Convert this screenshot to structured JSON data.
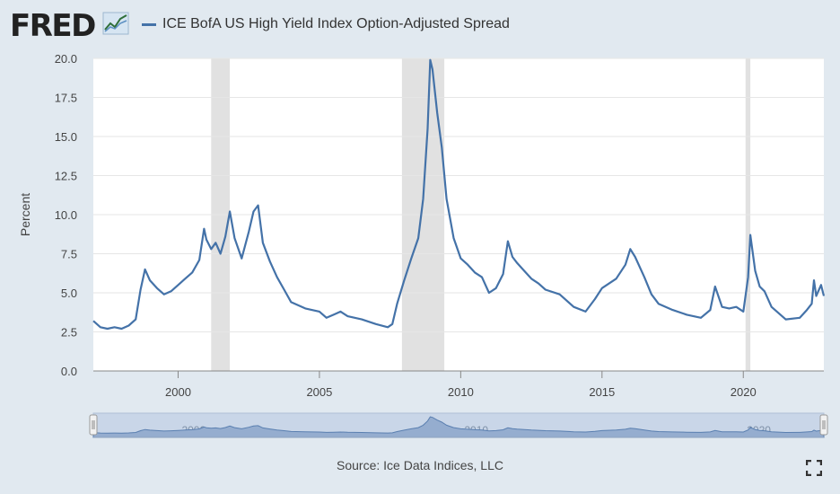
{
  "header": {
    "logo_text": "FRED",
    "legend_label": "ICE BofA US High Yield Index Option-Adjusted Spread"
  },
  "footer": {
    "source": "Source: Ice Data Indices, LLC"
  },
  "icons": {
    "logo_graph": "fred-graph-icon",
    "fullscreen": "fullscreen-icon"
  },
  "colors": {
    "line": "#4472a8",
    "recession_band": "#e1e1e1",
    "page_background": "#e1e9f0",
    "plot_background": "#ffffff"
  },
  "chart_data": {
    "type": "line",
    "title": "",
    "xlabel": "",
    "ylabel": "Percent",
    "xlim": [
      1997.0,
      2022.85
    ],
    "ylim": [
      0,
      20
    ],
    "yticks": [
      "0.0",
      "2.5",
      "5.0",
      "7.5",
      "10.0",
      "12.5",
      "15.0",
      "17.5",
      "20.0"
    ],
    "xticks": [
      "2000",
      "2005",
      "2010",
      "2015",
      "2020"
    ],
    "grid": true,
    "legend_position": "top-left",
    "recessions": [
      [
        2001.17,
        2001.83
      ],
      [
        2007.92,
        2009.42
      ],
      [
        2020.08,
        2020.25
      ]
    ],
    "navigator_labels": [
      "2000",
      "2010",
      "2020"
    ],
    "series": [
      {
        "name": "ICE BofA US High Yield Index Option-Adjusted Spread",
        "x": [
          1997.0,
          1997.25,
          1997.5,
          1997.75,
          1998.0,
          1998.25,
          1998.5,
          1998.67,
          1998.83,
          1999.0,
          1999.25,
          1999.5,
          1999.75,
          2000.0,
          2000.25,
          2000.5,
          2000.75,
          2000.92,
          2001.0,
          2001.17,
          2001.33,
          2001.5,
          2001.67,
          2001.83,
          2002.0,
          2002.25,
          2002.5,
          2002.67,
          2002.83,
          2003.0,
          2003.25,
          2003.5,
          2003.75,
          2004.0,
          2004.5,
          2005.0,
          2005.25,
          2005.5,
          2005.75,
          2006.0,
          2006.5,
          2007.0,
          2007.42,
          2007.58,
          2007.75,
          2008.0,
          2008.25,
          2008.5,
          2008.67,
          2008.83,
          2008.92,
          2009.0,
          2009.17,
          2009.33,
          2009.5,
          2009.75,
          2010.0,
          2010.25,
          2010.5,
          2010.75,
          2011.0,
          2011.25,
          2011.5,
          2011.67,
          2011.83,
          2012.0,
          2012.25,
          2012.5,
          2012.75,
          2013.0,
          2013.5,
          2014.0,
          2014.42,
          2014.75,
          2015.0,
          2015.5,
          2015.83,
          2016.0,
          2016.17,
          2016.5,
          2016.75,
          2017.0,
          2017.5,
          2018.0,
          2018.5,
          2018.83,
          2019.0,
          2019.25,
          2019.5,
          2019.75,
          2020.0,
          2020.17,
          2020.25,
          2020.42,
          2020.58,
          2020.75,
          2021.0,
          2021.5,
          2022.0,
          2022.25,
          2022.42,
          2022.5,
          2022.58,
          2022.75,
          2022.85
        ],
        "values": [
          3.2,
          2.8,
          2.7,
          2.8,
          2.7,
          2.9,
          3.3,
          5.2,
          6.5,
          5.8,
          5.3,
          4.9,
          5.1,
          5.5,
          5.9,
          6.3,
          7.1,
          9.1,
          8.4,
          7.8,
          8.2,
          7.5,
          8.6,
          10.2,
          8.5,
          7.2,
          8.9,
          10.2,
          10.6,
          8.2,
          7.0,
          6.0,
          5.2,
          4.4,
          4.0,
          3.8,
          3.4,
          3.6,
          3.8,
          3.5,
          3.3,
          3.0,
          2.8,
          3.0,
          4.3,
          5.8,
          7.2,
          8.5,
          11.0,
          15.5,
          19.9,
          19.3,
          16.5,
          14.3,
          11.0,
          8.5,
          7.2,
          6.8,
          6.3,
          6.0,
          5.0,
          5.3,
          6.2,
          8.3,
          7.3,
          6.9,
          6.4,
          5.9,
          5.6,
          5.2,
          4.9,
          4.1,
          3.8,
          4.6,
          5.3,
          5.9,
          6.8,
          7.8,
          7.3,
          6.0,
          4.9,
          4.3,
          3.9,
          3.6,
          3.4,
          3.9,
          5.4,
          4.1,
          4.0,
          4.1,
          3.8,
          6.0,
          8.7,
          6.4,
          5.4,
          5.1,
          4.1,
          3.3,
          3.4,
          3.9,
          4.3,
          5.8,
          4.8,
          5.5,
          4.8
        ]
      }
    ]
  }
}
